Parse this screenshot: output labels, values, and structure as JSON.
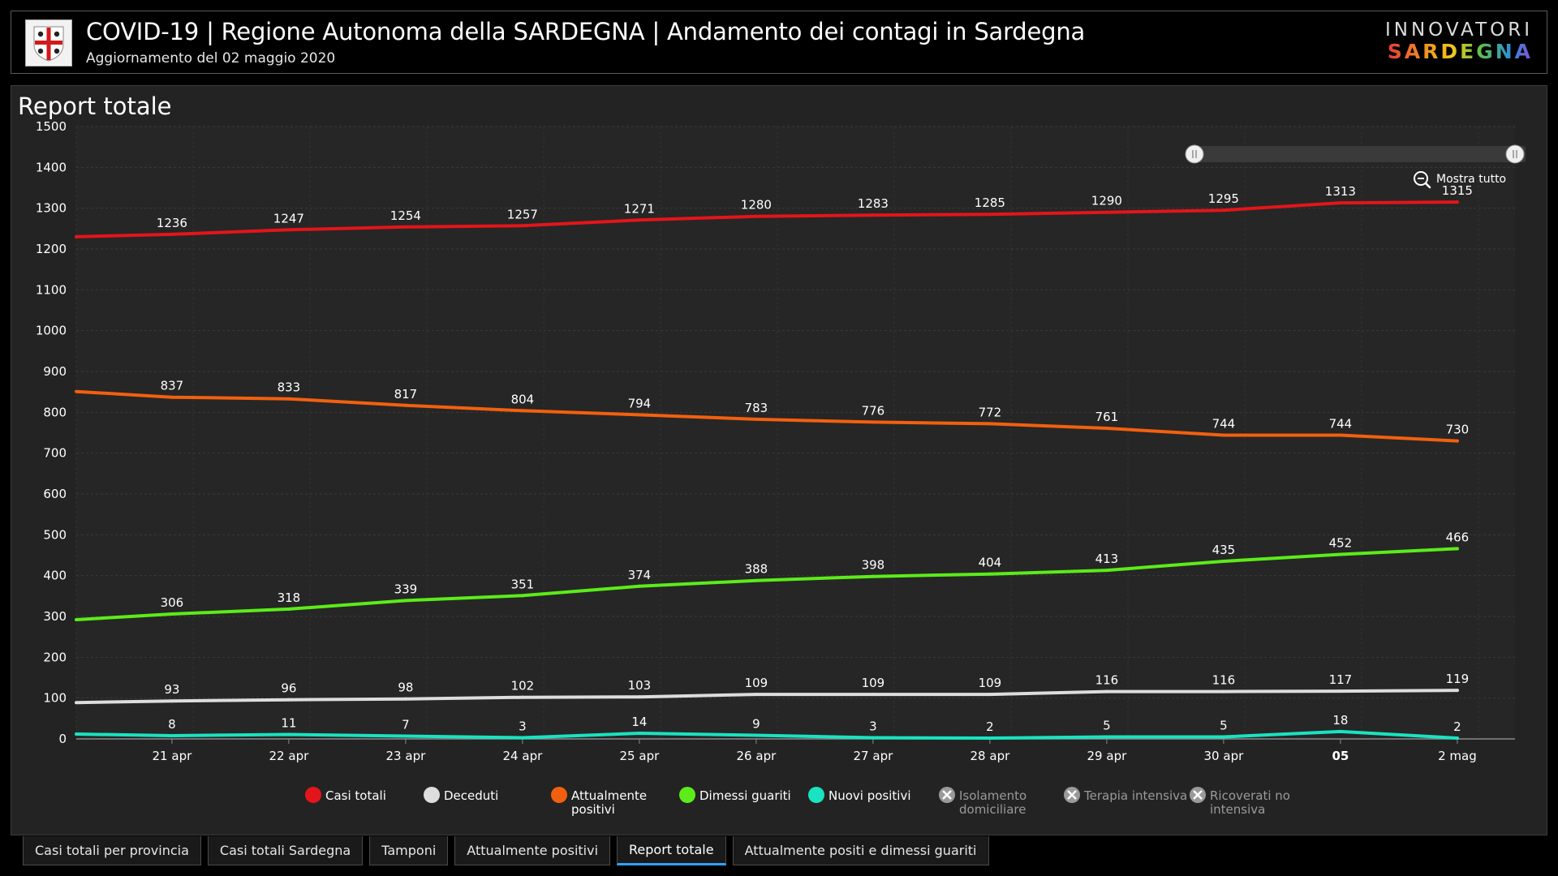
{
  "header": {
    "title": "COVID-19 | Regione Autonoma della SARDEGNA | Andamento dei contagi in Sardegna",
    "subtitle": "Aggiornamento del 02 maggio 2020",
    "brand_top": "INNOVATORI",
    "brand_bottom": "SARDEGNA"
  },
  "panel": {
    "title": "Report totale",
    "zoom_label": "Mostra tutto"
  },
  "chart_data": {
    "type": "line",
    "title": "Report totale",
    "ylim": [
      0,
      1500
    ],
    "yticks": [
      0,
      100,
      200,
      300,
      400,
      500,
      600,
      700,
      800,
      900,
      1000,
      1100,
      1200,
      1300,
      1400,
      1500
    ],
    "categories": [
      "21 apr",
      "22 apr",
      "23 apr",
      "24 apr",
      "25 apr",
      "26 apr",
      "27 apr",
      "28 apr",
      "29 apr",
      "30 apr",
      "05",
      "2 mag"
    ],
    "grid": true,
    "legend_position": "bottom",
    "series": [
      {
        "name": "Casi totali",
        "color": "#e3151a",
        "start": 1230,
        "values": [
          1236,
          1247,
          1254,
          1257,
          1271,
          1280,
          1283,
          1285,
          1290,
          1295,
          1313,
          1315
        ]
      },
      {
        "name": "Deceduti",
        "color": "#dddddd",
        "start": 89,
        "values": [
          93,
          96,
          98,
          102,
          103,
          109,
          109,
          109,
          116,
          116,
          117,
          119
        ]
      },
      {
        "name": "Attualmente positivi",
        "color": "#f2600f",
        "start": 851,
        "values": [
          837,
          833,
          817,
          804,
          794,
          783,
          776,
          772,
          761,
          744,
          744,
          730
        ]
      },
      {
        "name": "Dimessi guariti",
        "color": "#5bec1a",
        "start": 292,
        "values": [
          306,
          318,
          339,
          351,
          374,
          388,
          398,
          404,
          413,
          435,
          452,
          466
        ]
      },
      {
        "name": "Nuovi positivi",
        "color": "#19e3c0",
        "start": 12,
        "values": [
          8,
          11,
          7,
          3,
          14,
          9,
          3,
          2,
          5,
          5,
          18,
          2
        ]
      }
    ],
    "legend": [
      {
        "name": "Casi totali",
        "color": "#e3151a",
        "active": true
      },
      {
        "name": "Deceduti",
        "color": "#dddddd",
        "active": true
      },
      {
        "name": "Attualmente positivi",
        "color": "#f2600f",
        "active": true
      },
      {
        "name": "Dimessi guariti",
        "color": "#5bec1a",
        "active": true
      },
      {
        "name": "Nuovi positivi",
        "color": "#19e3c0",
        "active": true
      },
      {
        "name": "Isolamento domiciliare",
        "color": "#9a9a9a",
        "active": false
      },
      {
        "name": "Terapia intensiva",
        "color": "#9a9a9a",
        "active": false
      },
      {
        "name": "Ricoverati no intensiva",
        "color": "#9a9a9a",
        "active": false
      }
    ]
  },
  "tabs": [
    {
      "label": "Casi totali per provincia",
      "active": false
    },
    {
      "label": "Casi totali Sardegna",
      "active": false
    },
    {
      "label": "Tamponi",
      "active": false
    },
    {
      "label": "Attualmente positivi",
      "active": false
    },
    {
      "label": "Report totale",
      "active": true
    },
    {
      "label": "Attualmente positi e dimessi guariti",
      "active": false
    }
  ]
}
